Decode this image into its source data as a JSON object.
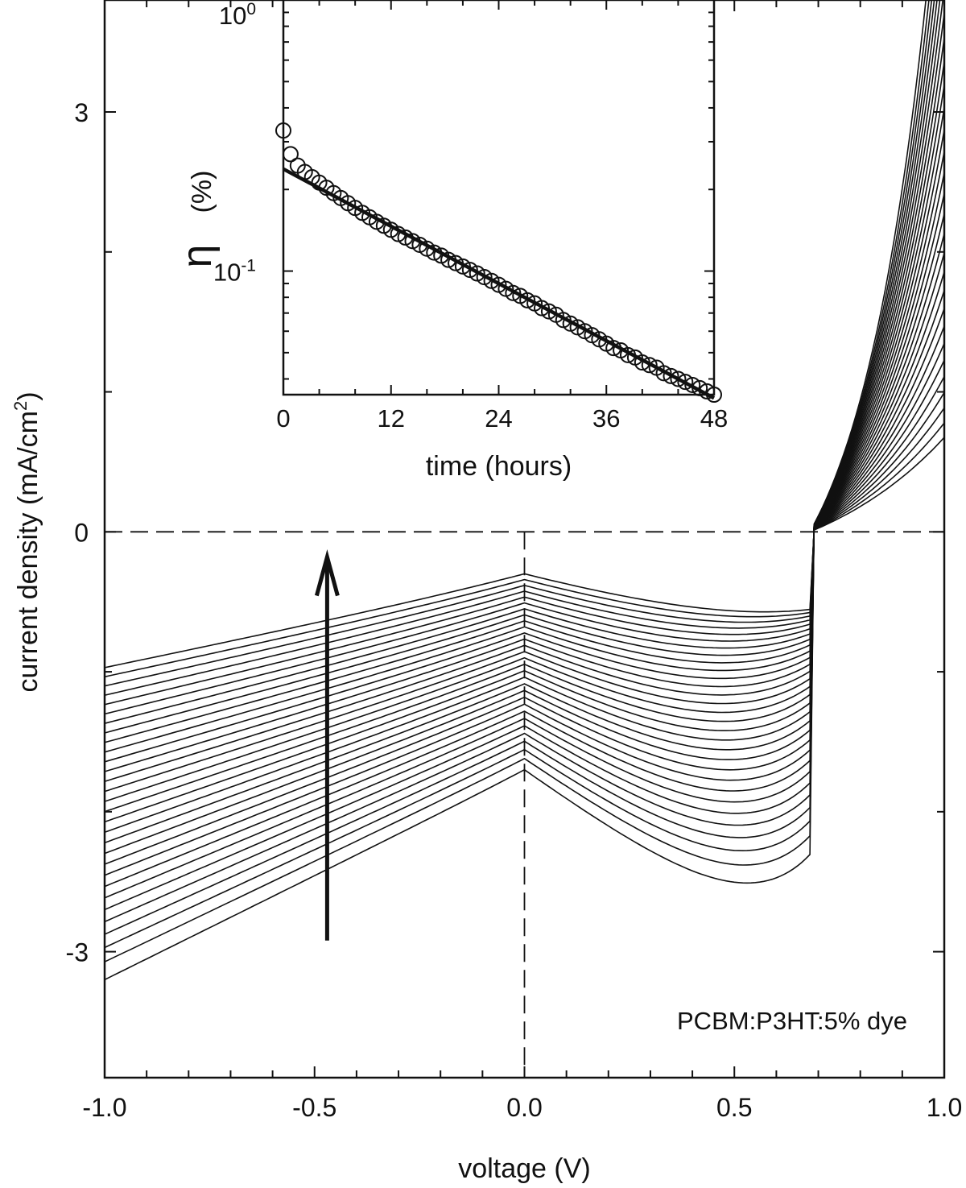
{
  "chart_data": [
    {
      "type": "line",
      "title": "",
      "xlabel": "voltage (V)",
      "ylabel": "current density (mA/cm²)",
      "ylabel_parts": {
        "main": "current density (mA/cm",
        "sup": "2",
        "tail": ")"
      },
      "xlim": [
        -1.0,
        1.0
      ],
      "ylim": [
        -3.9,
        3.8
      ],
      "x_ticks": [
        "-1.0",
        "-0.5",
        "0.0",
        "0.5",
        "1.0"
      ],
      "x_tick_values": [
        -1.0,
        -0.5,
        0.0,
        0.5,
        1.0
      ],
      "y_ticks": [
        "-3",
        "0",
        "3"
      ],
      "y_tick_values": [
        -3,
        0,
        3
      ],
      "grid": false,
      "reference_lines": {
        "y": 0,
        "x": 0
      },
      "annotation": "PCBM:P3HT:5% dye",
      "arrow": {
        "x": -0.47,
        "from_y": -2.92,
        "to_y": -0.18,
        "meaning": "increasing time"
      },
      "common_crossing": {
        "x": 0.68,
        "y": 0
      },
      "curve_count": 30,
      "series_endpoints": {
        "x": [
          -1.0,
          0.0,
          0.68,
          1.0
        ],
        "first_curve_y": [
          -3.2,
          -1.7,
          0,
          2.9
        ],
        "last_curve_y": [
          -0.97,
          -0.3,
          0,
          0.12
        ]
      }
    },
    {
      "type": "scatter",
      "title": "",
      "xlabel": "time (hours)",
      "ylabel": "η (%)",
      "ylabel_parts": {
        "symbol": "η",
        "unit": "(%)"
      },
      "xlim": [
        0,
        48
      ],
      "ylim": [
        0.035,
        1.0
      ],
      "y_scale": "log",
      "x_ticks": [
        "0",
        "12",
        "24",
        "36",
        "48"
      ],
      "x_tick_values": [
        0,
        12,
        24,
        36,
        48
      ],
      "y_ticks": [
        {
          "base": "10",
          "exp": "0",
          "value": 1.0
        },
        {
          "base": "10",
          "exp": "-1",
          "value": 0.1
        }
      ],
      "grid": false,
      "series": [
        {
          "marker": "open-circle",
          "x": [
            0,
            0.8,
            1.6,
            2.4,
            3.2,
            4.0,
            4.8,
            5.6,
            6.4,
            7.2,
            8.0,
            8.8,
            9.6,
            10.4,
            11.2,
            12.0,
            12.8,
            13.6,
            14.4,
            15.2,
            16.0,
            16.8,
            17.6,
            18.4,
            19.2,
            20.0,
            20.8,
            21.6,
            22.4,
            23.2,
            24.0,
            24.8,
            25.6,
            26.4,
            27.2,
            28.0,
            28.8,
            29.6,
            30.4,
            31.2,
            32.0,
            32.8,
            33.6,
            34.4,
            35.2,
            36.0,
            36.8,
            37.6,
            38.4,
            39.2,
            40.0,
            40.8,
            41.6,
            42.4,
            43.2,
            44.0,
            44.8,
            45.6,
            46.4,
            47.2,
            48.0
          ],
          "y": [
            0.33,
            0.27,
            0.245,
            0.232,
            0.222,
            0.212,
            0.203,
            0.194,
            0.186,
            0.178,
            0.171,
            0.164,
            0.158,
            0.152,
            0.147,
            0.142,
            0.137,
            0.133,
            0.129,
            0.125,
            0.121,
            0.117,
            0.114,
            0.11,
            0.107,
            0.104,
            0.101,
            0.098,
            0.095,
            0.092,
            0.089,
            0.086,
            0.083,
            0.081,
            0.078,
            0.076,
            0.073,
            0.071,
            0.069,
            0.066,
            0.064,
            0.062,
            0.06,
            0.058,
            0.056,
            0.054,
            0.052,
            0.051,
            0.049,
            0.048,
            0.046,
            0.045,
            0.044,
            0.042,
            0.041,
            0.04,
            0.039,
            0.038,
            0.037,
            0.036,
            0.035
          ]
        },
        {
          "marker": "line",
          "x": [
            0,
            48
          ],
          "y": [
            0.238,
            0.034
          ],
          "fit": "exponential"
        }
      ]
    }
  ]
}
